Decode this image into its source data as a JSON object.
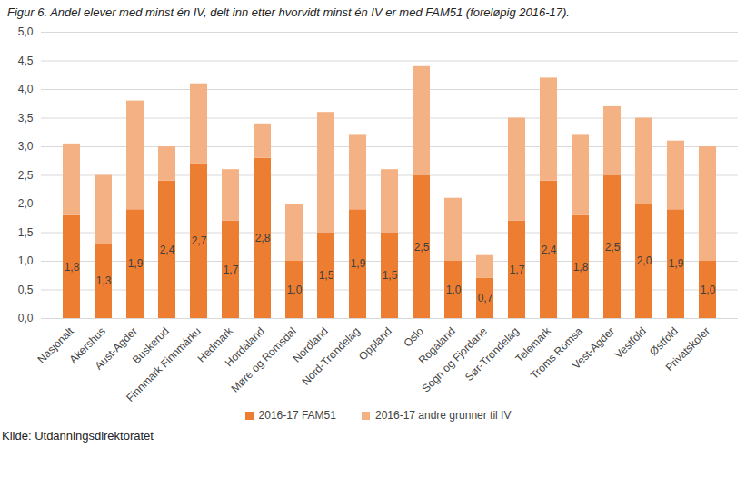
{
  "chart_data": {
    "type": "bar",
    "title": "Figur 6. Andel elever med minst én IV, delt inn etter hvorvidt minst én IV er med FAM51 (foreløpig 2016-17).",
    "source": "Kilde: Utdanningsdirektoratet",
    "categories": [
      "Nasjonalt",
      "Akershus",
      "Aust-Agder",
      "Buskerud",
      "Finnmark Finnmárku",
      "Hedmark",
      "Hordaland",
      "Møre og Romsdal",
      "Nordland",
      "Nord-Trøndelag",
      "Oppland",
      "Oslo",
      "Rogaland",
      "Sogn og Fjordane",
      "Sør-Trøndelag",
      "Telemark",
      "Troms Romsa",
      "Vest-Agder",
      "Vestfold",
      "Østfold",
      "Privatskoler"
    ],
    "stacked": true,
    "grid": true,
    "legend": "bottom",
    "series": [
      {
        "name": "2016-17 FAM51",
        "color": "#ED7D31",
        "data_labels": true,
        "values": [
          1.8,
          1.3,
          1.9,
          2.4,
          2.7,
          1.7,
          2.8,
          1.0,
          1.5,
          1.9,
          1.5,
          2.5,
          1.0,
          0.7,
          1.7,
          2.4,
          1.8,
          2.5,
          2.0,
          1.9,
          1.0
        ],
        "value_labels": [
          "1,8",
          "1,3",
          "1,9",
          "2,4",
          "2,7",
          "1,7",
          "2,8",
          "1,0",
          "1,5",
          "1,9",
          "1,5",
          "2,5",
          "1,0",
          "0,7",
          "1,7",
          "2,4",
          "1,8",
          "2,5",
          "2,0",
          "1,9",
          "1,0"
        ]
      },
      {
        "name": "2016-17 andre grunner til IV",
        "color": "#F4B183",
        "data_labels": false,
        "values": [
          1.25,
          1.2,
          1.9,
          0.6,
          1.4,
          0.9,
          0.6,
          1.0,
          2.1,
          1.3,
          1.1,
          1.9,
          1.1,
          0.4,
          1.8,
          1.8,
          1.4,
          1.2,
          1.5,
          1.2,
          2.0
        ]
      }
    ],
    "ylim": [
      0,
      5
    ],
    "yticks": [
      {
        "value": 0,
        "label": "0,0"
      },
      {
        "value": 0.5,
        "label": "0,5"
      },
      {
        "value": 1,
        "label": "1,0"
      },
      {
        "value": 1.5,
        "label": "1,5"
      },
      {
        "value": 2,
        "label": "2,0"
      },
      {
        "value": 2.5,
        "label": "2,5"
      },
      {
        "value": 3,
        "label": "3,0"
      },
      {
        "value": 3.5,
        "label": "3,5"
      },
      {
        "value": 4,
        "label": "4,0"
      },
      {
        "value": 4.5,
        "label": "4,5"
      },
      {
        "value": 5,
        "label": "5,0"
      }
    ]
  }
}
